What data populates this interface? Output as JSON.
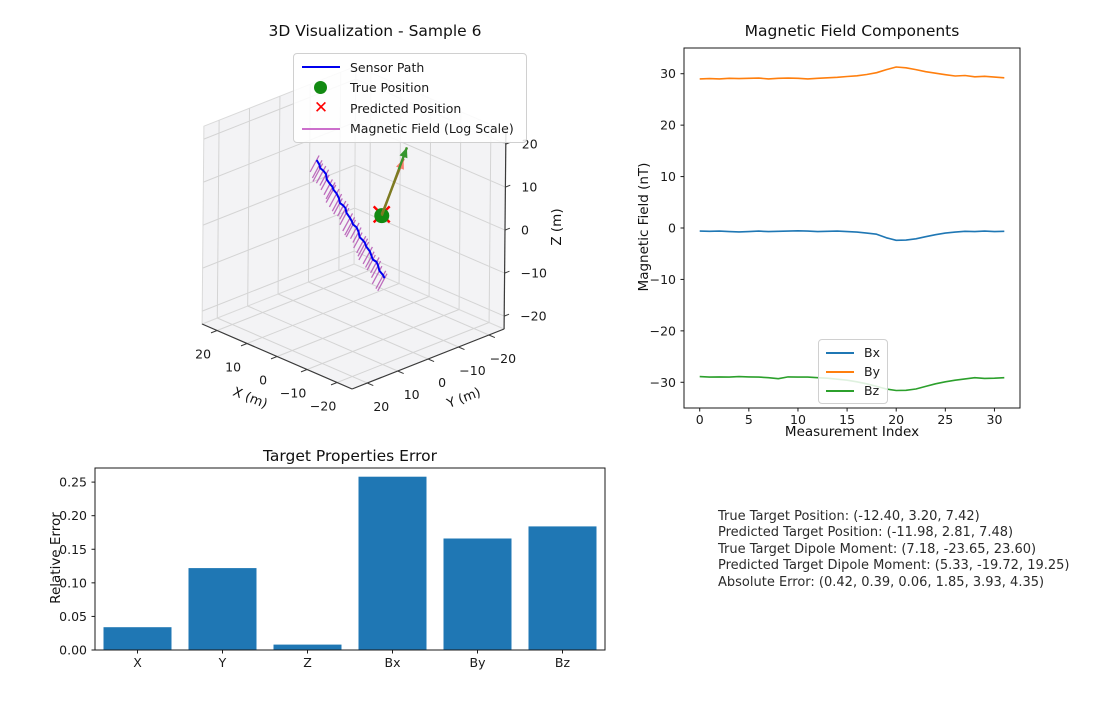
{
  "figure": {
    "background": "#ffffff"
  },
  "chart_data": [
    {
      "type": "3d-line",
      "title": "3D Visualization - Sample 6",
      "xlabel": "X (m)",
      "ylabel": "Y (m)",
      "zlabel": "Z (m)",
      "axis_range": [
        -25,
        25
      ],
      "xtick_values": [
        20,
        10,
        0,
        -10,
        -20
      ],
      "xtick_labels": [
        "20",
        "10",
        "0",
        "−10",
        "−20"
      ],
      "ytick_values": [
        20,
        10,
        0,
        -10,
        -20
      ],
      "ytick_labels": [
        "20",
        "10",
        "0",
        "−10",
        "−20"
      ],
      "ztick_values": [
        -20,
        -10,
        0,
        10,
        20
      ],
      "ztick_labels": [
        "−20",
        "−10",
        "0",
        "10",
        "20"
      ],
      "legend": [
        {
          "label": "Sensor Path",
          "marker": "line",
          "color": "#0000ee"
        },
        {
          "label": "True Position",
          "marker": "dot",
          "color": "#128a12"
        },
        {
          "label": "Predicted Position",
          "marker": "x",
          "color": "#ff0000"
        },
        {
          "label": "Magnetic Field (Log Scale)",
          "marker": "line",
          "color": "#cc6fcc"
        }
      ],
      "sensor_path": {
        "start": [
          7.3,
          5.3,
          15
        ],
        "end": [
          -7.9,
          -2.4,
          -10
        ],
        "n_points": 32,
        "color": "#0000ee"
      },
      "field_vector_color": "#b85fb8",
      "true_position": [
        -12.4,
        3.2,
        7.42
      ],
      "predicted_position": [
        -11.98,
        2.81,
        7.48
      ],
      "true_dipole_moment": [
        7.18,
        -23.65,
        23.6
      ],
      "predicted_dipole_moment": [
        5.33,
        -19.72,
        19.25
      ],
      "true_arrow_color": "#35962e",
      "true_arrow_shaft_color": "#7c7c22",
      "predicted_arrow_color": "#fa8072",
      "predicted_arrow_shaft_color": "#b06a45"
    },
    {
      "type": "line",
      "title": "Magnetic Field Components",
      "xlabel": "Measurement Index",
      "ylabel": "Magnetic Field (nT)",
      "x_range": [
        0,
        31
      ],
      "n": 32,
      "xlim": [
        -1.6,
        32.6
      ],
      "ylim": [
        -35,
        35
      ],
      "xtick_values": [
        0,
        5,
        10,
        15,
        20,
        25,
        30
      ],
      "xtick_labels": [
        "0",
        "5",
        "10",
        "15",
        "20",
        "25",
        "30"
      ],
      "ytick_values": [
        30,
        20,
        10,
        0,
        -10,
        -20,
        -30
      ],
      "ytick_labels": [
        "30",
        "20",
        "10",
        "0",
        "−10",
        "−20",
        "−30"
      ],
      "legend_position": "lower center",
      "series": [
        {
          "name": "Bx",
          "color": "#1f77b4",
          "values": [
            -0.6,
            -0.65,
            -0.6,
            -0.7,
            -0.75,
            -0.7,
            -0.6,
            -0.7,
            -0.65,
            -0.6,
            -0.55,
            -0.6,
            -0.7,
            -0.65,
            -0.6,
            -0.7,
            -0.8,
            -1.0,
            -1.2,
            -1.9,
            -2.4,
            -2.35,
            -2.1,
            -1.7,
            -1.3,
            -1.0,
            -0.8,
            -0.65,
            -0.7,
            -0.6,
            -0.7,
            -0.65
          ]
        },
        {
          "name": "By",
          "color": "#ff7f0e",
          "values": [
            29.0,
            29.05,
            29.0,
            29.1,
            29.05,
            29.1,
            29.15,
            29.0,
            29.1,
            29.15,
            29.1,
            29.0,
            29.1,
            29.2,
            29.3,
            29.45,
            29.6,
            29.85,
            30.2,
            30.8,
            31.3,
            31.15,
            30.8,
            30.4,
            30.1,
            29.8,
            29.55,
            29.65,
            29.4,
            29.5,
            29.35,
            29.2
          ]
        },
        {
          "name": "Bz",
          "color": "#2ca02c",
          "values": [
            -28.9,
            -29.0,
            -28.95,
            -29.0,
            -28.9,
            -28.95,
            -29.0,
            -29.1,
            -29.3,
            -28.95,
            -29.0,
            -29.0,
            -29.1,
            -29.2,
            -29.4,
            -29.6,
            -29.9,
            -30.3,
            -30.8,
            -31.3,
            -31.6,
            -31.55,
            -31.3,
            -30.8,
            -30.3,
            -29.9,
            -29.6,
            -29.35,
            -29.1,
            -29.25,
            -29.2,
            -29.1
          ]
        }
      ]
    },
    {
      "type": "bar",
      "title": "Target Properties Error",
      "ylabel": "Relative Error",
      "categories": [
        "X",
        "Y",
        "Z",
        "Bx",
        "By",
        "Bz"
      ],
      "values": [
        0.034,
        0.122,
        0.008,
        0.258,
        0.166,
        0.184
      ],
      "bar_color": "#1f77b4",
      "ylim": [
        0,
        0.271
      ],
      "ytick_values": [
        0,
        0.05,
        0.1,
        0.15,
        0.2,
        0.25
      ],
      "ytick_labels": [
        "0.00",
        "0.05",
        "0.10",
        "0.15",
        "0.20",
        "0.25"
      ]
    },
    {
      "type": "text",
      "lines": [
        "True Target Position: (-12.40, 3.20, 7.42)",
        "Predicted Target Position: (-11.98, 2.81, 7.48)",
        "True Target Dipole Moment: (7.18, -23.65, 23.60)",
        "Predicted Target Dipole Moment: (5.33, -19.72, 19.25)",
        "Absolute Error: (0.42, 0.39, 0.06, 1.85, 3.93, 4.35)"
      ]
    }
  ]
}
